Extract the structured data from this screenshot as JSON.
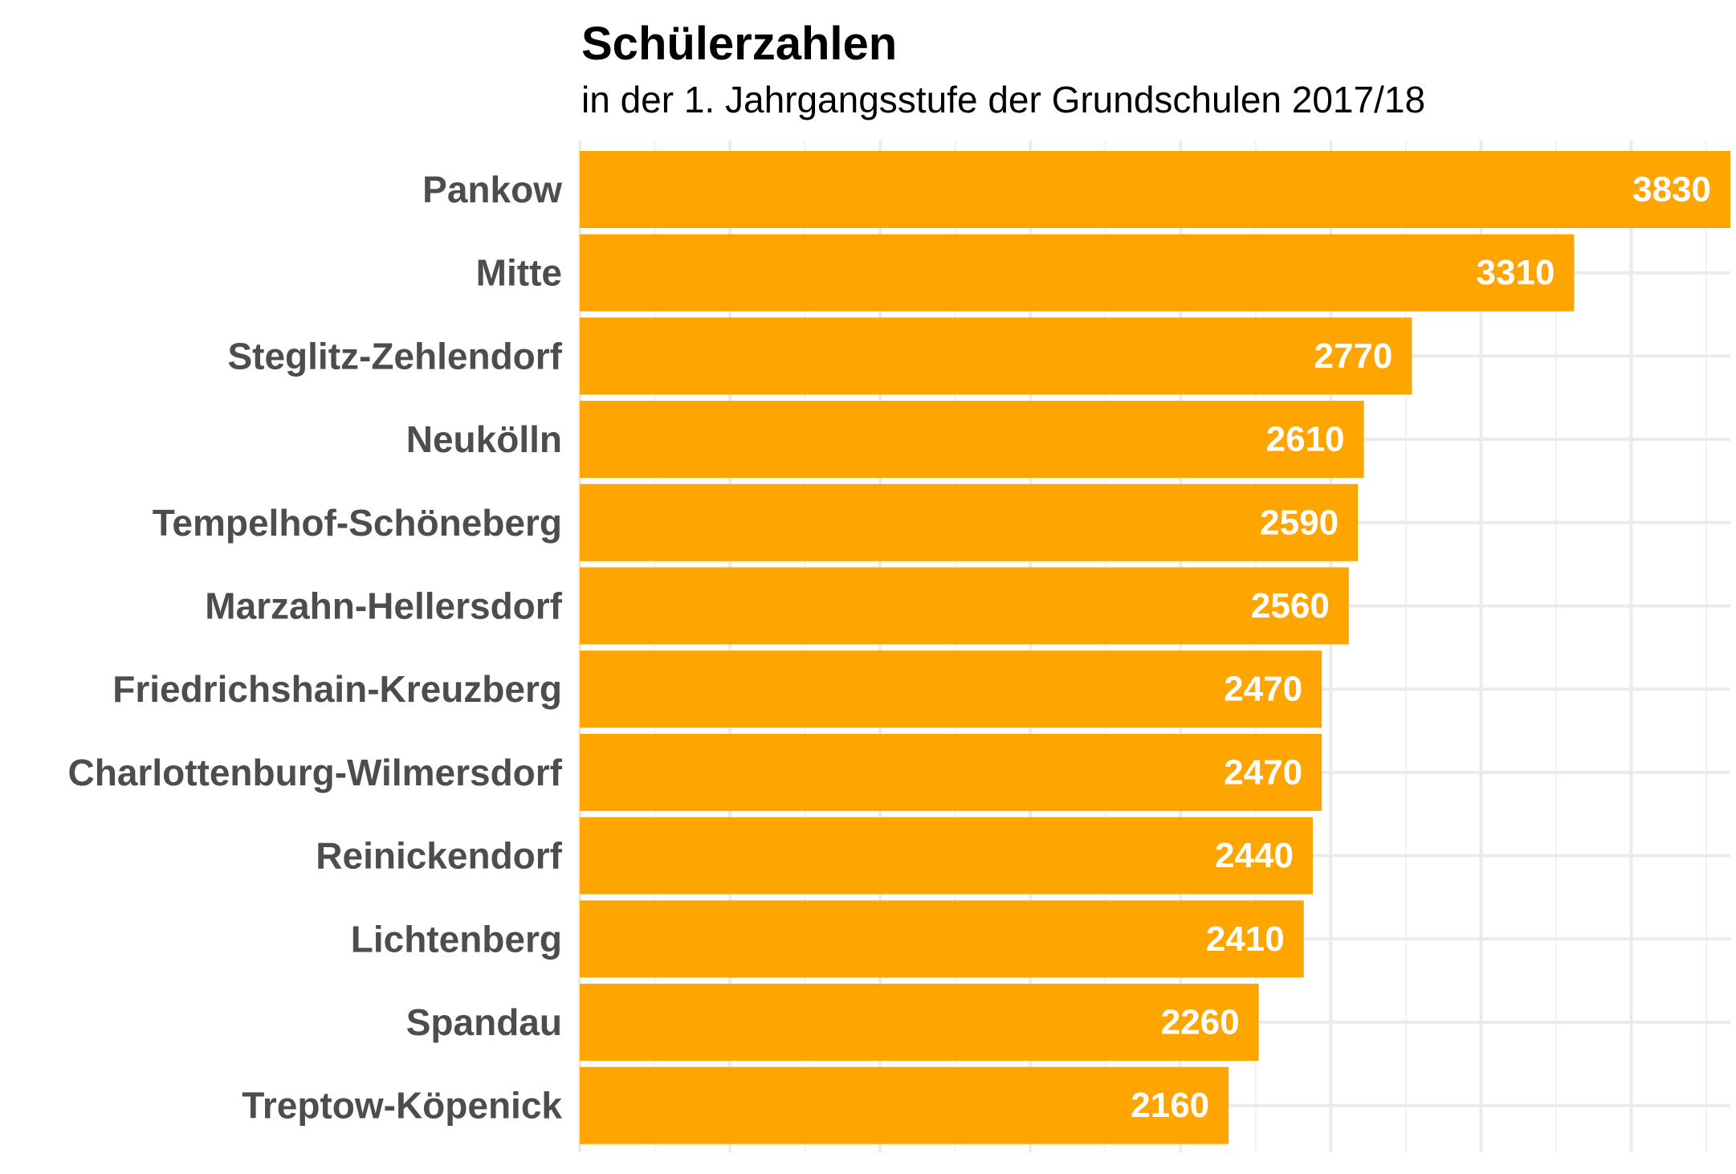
{
  "chart_data": {
    "type": "bar",
    "orientation": "horizontal",
    "title": "Schülerzahlen",
    "subtitle": "in der 1. Jahrgangsstufe der Grundschulen 2017/18",
    "xlabel": "",
    "ylabel": "",
    "categories": [
      "Pankow",
      "Mitte",
      "Steglitz-Zehlendorf",
      "Neukölln",
      "Tempelhof-Schöneberg",
      "Marzahn-Hellersdorf",
      "Friedrichshain-Kreuzberg",
      "Charlottenburg-Wilmersdorf",
      "Reinickendorf",
      "Lichtenberg",
      "Spandau",
      "Treptow-Köpenick"
    ],
    "values": [
      3830,
      3310,
      2770,
      2610,
      2590,
      2560,
      2470,
      2470,
      2440,
      2410,
      2260,
      2160
    ],
    "value_labels": [
      "3830",
      "3310",
      "2770",
      "2610",
      "2590",
      "2560",
      "2470",
      "2470",
      "2440",
      "2410",
      "2260",
      "2160"
    ],
    "xlim": [
      0,
      3830
    ],
    "grid": true,
    "legend": "none",
    "bar_color": "#ffa500",
    "label_color": "#ffffff",
    "category_label_color": "#4d4d4d",
    "grid_color": "#ebebeb"
  }
}
